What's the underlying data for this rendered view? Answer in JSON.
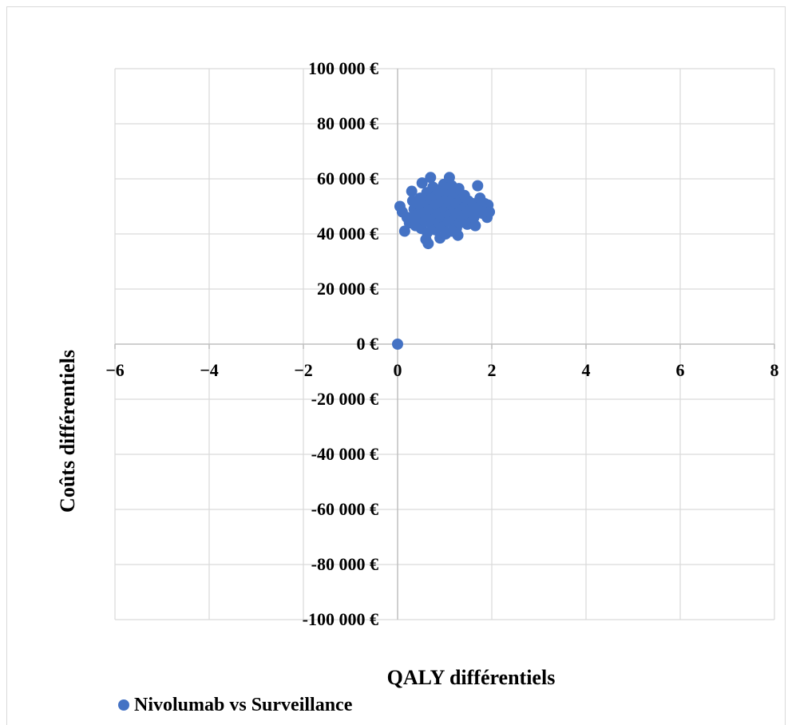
{
  "chart_data": {
    "type": "scatter",
    "xlabel": "QALY différentiels",
    "ylabel": "Coûts différentiels",
    "xlim": [
      -6,
      8
    ],
    "ylim": [
      -100000,
      100000
    ],
    "x_ticks": [
      -6,
      -4,
      -2,
      0,
      2,
      4,
      6,
      8
    ],
    "x_tick_labels": [
      "−6",
      "−4",
      "−2",
      "0",
      "2",
      "4",
      "6",
      "8"
    ],
    "y_ticks": [
      100000,
      80000,
      60000,
      40000,
      20000,
      0,
      -20000,
      -40000,
      -60000,
      -80000,
      -100000
    ],
    "y_tick_labels": [
      "100 000 €",
      "80 000 €",
      "60 000 €",
      "40 000 €",
      "20 000 €",
      "0 €",
      "-20 000 €",
      "-40 000 €",
      "-60 000 €",
      "-80 000 €",
      "-100 000 €"
    ],
    "grid": true,
    "legend_position": "bottom-left",
    "marker_color": "#4472c4",
    "series": [
      {
        "name": "Nivolumab vs Surveillance",
        "points": [
          [
            0.0,
            0
          ],
          [
            0.05,
            50000
          ],
          [
            0.1,
            48000
          ],
          [
            0.15,
            41000
          ],
          [
            0.2,
            46000
          ],
          [
            0.25,
            44000
          ],
          [
            0.3,
            55500
          ],
          [
            0.32,
            52000
          ],
          [
            0.35,
            49000
          ],
          [
            0.38,
            43000
          ],
          [
            0.4,
            47000
          ],
          [
            0.42,
            51000
          ],
          [
            0.45,
            45000
          ],
          [
            0.48,
            53000
          ],
          [
            0.5,
            42000
          ],
          [
            0.5,
            49500
          ],
          [
            0.52,
            58500
          ],
          [
            0.55,
            47500
          ],
          [
            0.58,
            44500
          ],
          [
            0.6,
            51500
          ],
          [
            0.6,
            38000
          ],
          [
            0.62,
            55000
          ],
          [
            0.63,
            40500
          ],
          [
            0.65,
            36500
          ],
          [
            0.65,
            48500
          ],
          [
            0.68,
            46000
          ],
          [
            0.7,
            60500
          ],
          [
            0.7,
            52500
          ],
          [
            0.72,
            43500
          ],
          [
            0.75,
            57000
          ],
          [
            0.75,
            49000
          ],
          [
            0.78,
            45500
          ],
          [
            0.8,
            53500
          ],
          [
            0.8,
            41500
          ],
          [
            0.82,
            50500
          ],
          [
            0.85,
            47000
          ],
          [
            0.85,
            56000
          ],
          [
            0.88,
            44000
          ],
          [
            0.9,
            38500
          ],
          [
            0.9,
            51000
          ],
          [
            0.92,
            54500
          ],
          [
            0.95,
            48000
          ],
          [
            0.95,
            42500
          ],
          [
            0.98,
            58000
          ],
          [
            1.0,
            46500
          ],
          [
            1.0,
            52000
          ],
          [
            1.02,
            40000
          ],
          [
            1.05,
            55500
          ],
          [
            1.05,
            49500
          ],
          [
            1.08,
            44500
          ],
          [
            1.1,
            60500
          ],
          [
            1.1,
            51500
          ],
          [
            1.12,
            47000
          ],
          [
            1.15,
            41000
          ],
          [
            1.15,
            57500
          ],
          [
            1.18,
            53000
          ],
          [
            1.2,
            45000
          ],
          [
            1.2,
            49000
          ],
          [
            1.22,
            55000
          ],
          [
            1.25,
            42000
          ],
          [
            1.25,
            51000
          ],
          [
            1.28,
            39500
          ],
          [
            1.3,
            47500
          ],
          [
            1.3,
            56500
          ],
          [
            1.32,
            44000
          ],
          [
            1.35,
            52500
          ],
          [
            1.38,
            48500
          ],
          [
            1.4,
            45500
          ],
          [
            1.42,
            54000
          ],
          [
            1.45,
            50000
          ],
          [
            1.48,
            43500
          ],
          [
            1.5,
            47000
          ],
          [
            1.5,
            52000
          ],
          [
            1.55,
            49000
          ],
          [
            1.58,
            44500
          ],
          [
            1.6,
            51000
          ],
          [
            1.62,
            46000
          ],
          [
            1.65,
            43000
          ],
          [
            1.7,
            57500
          ],
          [
            1.72,
            49500
          ],
          [
            1.75,
            53000
          ],
          [
            1.8,
            47500
          ],
          [
            1.85,
            51000
          ],
          [
            1.9,
            46000
          ],
          [
            1.92,
            50500
          ],
          [
            1.95,
            48000
          ]
        ]
      }
    ]
  }
}
